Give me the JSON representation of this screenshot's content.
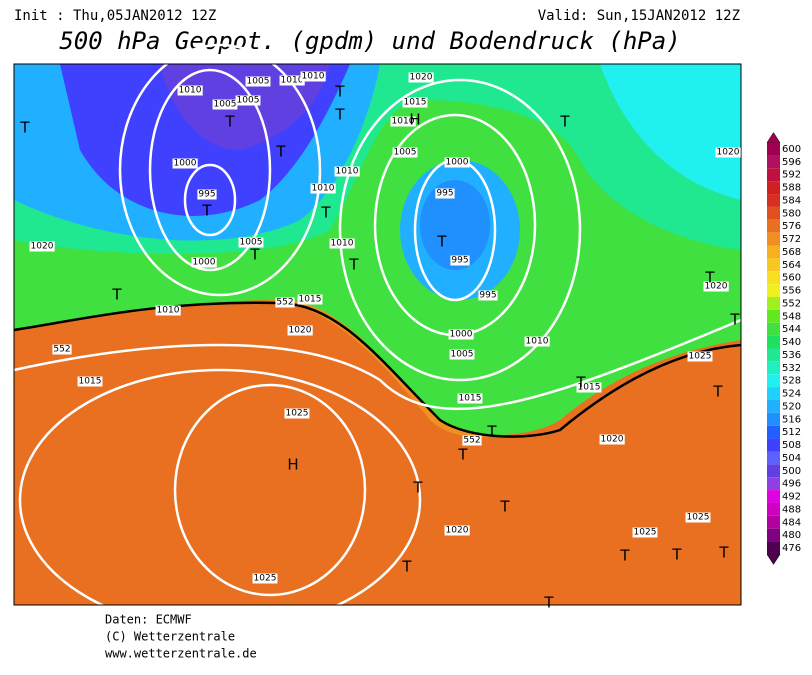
{
  "header": {
    "init": "Init : Thu,05JAN2012 12Z",
    "valid": "Valid: Sun,15JAN2012 12Z",
    "title": "500 hPa Geopot. (gpdm) und Bodendruck (hPa)"
  },
  "colorbar": {
    "levels": [
      600,
      596,
      592,
      588,
      584,
      580,
      576,
      572,
      568,
      564,
      560,
      556,
      552,
      548,
      544,
      540,
      536,
      532,
      528,
      524,
      520,
      516,
      512,
      508,
      504,
      500,
      496,
      492,
      488,
      484,
      480,
      476
    ],
    "colors": [
      "#a00050",
      "#b01060",
      "#c01040",
      "#d02020",
      "#d83020",
      "#e05020",
      "#e87020",
      "#f09020",
      "#f8b020",
      "#f8c820",
      "#f8e020",
      "#f0f020",
      "#a0f020",
      "#60e820",
      "#40e040",
      "#20e060",
      "#20e890",
      "#20f0c0",
      "#20f0f0",
      "#20d0ff",
      "#20b0ff",
      "#2090ff",
      "#2060ff",
      "#4040ff",
      "#6060ff",
      "#6040e0",
      "#9040e0",
      "#e000e0",
      "#d000c0",
      "#b000a0",
      "#800080",
      "#500050"
    ]
  },
  "map": {
    "isobar_labels": [
      "1010",
      "1005",
      "1010",
      "1010",
      "1005",
      "1005",
      "1020",
      "1015",
      "1010",
      "1005",
      "1000",
      "1000",
      "995",
      "1010",
      "1010",
      "995",
      "1005",
      "1010",
      "1000",
      "1020",
      "995",
      "995",
      "1010",
      "1015",
      "552",
      "1020",
      "1010",
      "1000",
      "1005",
      "552",
      "1015",
      "1025",
      "1015",
      "1015",
      "1025",
      "1020",
      "552",
      "1020",
      "1025",
      "1025",
      "1025",
      "1020",
      "1020"
    ],
    "centers": [
      "H",
      "H",
      "T",
      "T",
      "T",
      "T",
      "T",
      "T",
      "T",
      "T",
      "T",
      "T",
      "T",
      "T",
      "T",
      "T",
      "T",
      "T",
      "T",
      "T",
      "T",
      "T",
      "T",
      "T",
      "T",
      "T",
      "T"
    ]
  },
  "footer": [
    "Daten: ECMWF",
    "(C) Wetterzentrale",
    "www.wetterzentrale.de"
  ]
}
